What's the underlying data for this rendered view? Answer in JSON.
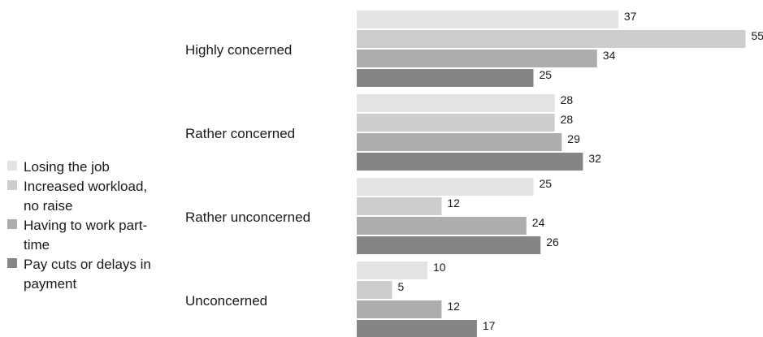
{
  "chart_data": {
    "type": "bar",
    "orientation": "horizontal",
    "categories": [
      "Highly concerned",
      "Rather concerned",
      "Rather unconcerned",
      "Unconcerned"
    ],
    "series": [
      {
        "name": "Losing the job",
        "values": [
          37,
          28,
          25,
          10
        ],
        "color": "#e3e3e3"
      },
      {
        "name": "Increased workload, no raise",
        "values": [
          55,
          28,
          12,
          5
        ],
        "color": "#cdcdcd"
      },
      {
        "name": "Having to work part-time",
        "values": [
          34,
          29,
          24,
          12
        ],
        "color": "#adadad"
      },
      {
        "name": "Pay cuts or delays in payment",
        "values": [
          25,
          32,
          26,
          17
        ],
        "color": "#858585"
      }
    ],
    "xlim": [
      0,
      55
    ],
    "grid": false,
    "legend": "left",
    "title": "",
    "xlabel": "",
    "ylabel": ""
  }
}
